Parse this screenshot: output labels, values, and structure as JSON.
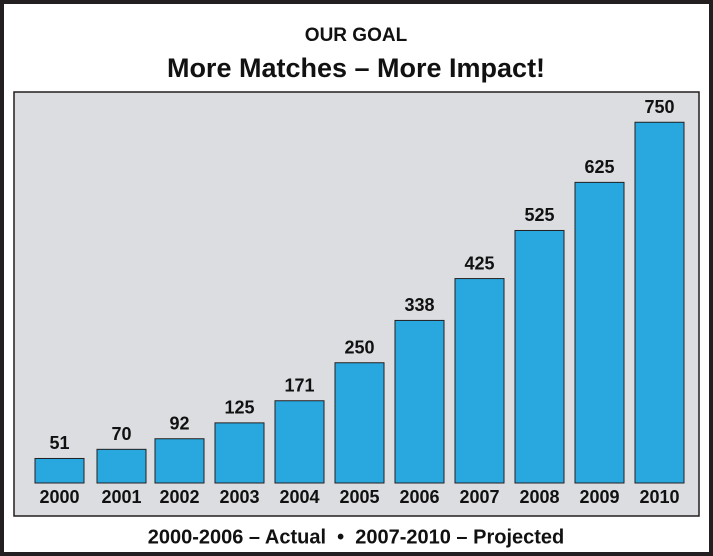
{
  "chart_data": {
    "type": "bar",
    "title": "OUR GOAL",
    "subtitle": "More Matches – More Impact!",
    "categories": [
      "2000",
      "2001",
      "2002",
      "2003",
      "2004",
      "2005",
      "2006",
      "2007",
      "2008",
      "2009",
      "2010"
    ],
    "values": [
      51,
      70,
      92,
      125,
      171,
      250,
      338,
      425,
      525,
      625,
      750
    ],
    "color": "#29a8e0",
    "caption": "2000-2006 – Actual  •  2007-2010 – Projected"
  }
}
